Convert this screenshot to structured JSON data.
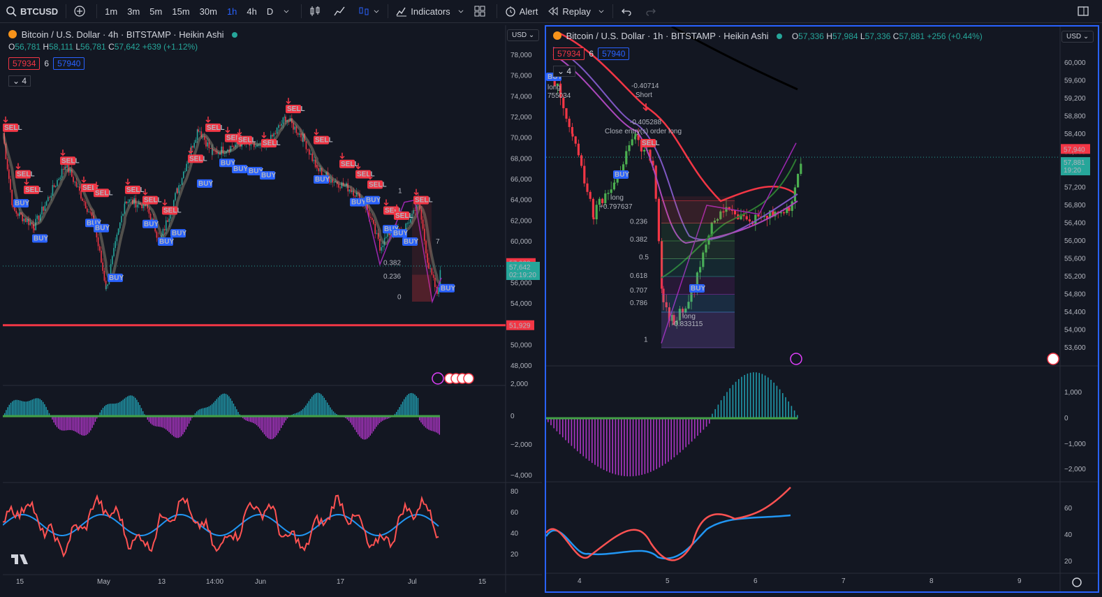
{
  "toolbar": {
    "symbol": "BTCUSD",
    "intervals": [
      "1m",
      "3m",
      "5m",
      "15m",
      "30m",
      "1h",
      "4h",
      "D"
    ],
    "active_interval": "1h",
    "indicators_label": "Indicators",
    "alert_label": "Alert",
    "replay_label": "Replay"
  },
  "left": {
    "title": "Bitcoin / U.S. Dollar · 4h · BITSTAMP · Heikin Ashi",
    "ohlc": {
      "o_label": "O",
      "o": "56,781",
      "h_label": "H",
      "h": "58,111",
      "l_label": "L",
      "l": "56,781",
      "c_label": "C",
      "c": "57,642",
      "chg": "+639 (+1.12%)"
    },
    "bid": "57934",
    "spread": "6",
    "ask": "57940",
    "collapse": "4",
    "currency": "USD",
    "y_ticks": [
      "78,000",
      "76,000",
      "74,000",
      "72,000",
      "70,000",
      "68,000",
      "66,000",
      "64,000",
      "62,000",
      "60,000",
      "58,000",
      "56,000",
      "54,000",
      "52,000",
      "50,000",
      "48,000"
    ],
    "price_tag": "57,928",
    "last_price": "57,642",
    "countdown": "02:19:20",
    "level_tag": "51,929",
    "fib_labels": [
      "1",
      "0.382",
      "0.236",
      "0",
      "7"
    ],
    "osc_ticks": [
      "2,000",
      "0",
      "−2,000",
      "−4,000"
    ],
    "rsi_ticks": [
      "80",
      "60",
      "40",
      "20"
    ],
    "x_ticks": [
      "15",
      "May",
      "13",
      "14:00",
      "Jun",
      "17",
      "Jul",
      "15"
    ],
    "signals": {
      "sell": "SELL",
      "buy": "BUY"
    }
  },
  "right": {
    "title": "Bitcoin / U.S. Dollar · 1h · BITSTAMP · Heikin Ashi",
    "ohlc": {
      "o_label": "O",
      "o": "57,336",
      "h_label": "H",
      "h": "57,984",
      "l_label": "L",
      "l": "57,336",
      "c_label": "C",
      "c": "57,881",
      "chg": "+256 (+0.44%)"
    },
    "bid": "57934",
    "spread": "6",
    "ask": "57940",
    "collapse": "4",
    "currency": "USD",
    "y_ticks": [
      "60,000",
      "59,600",
      "59,200",
      "58,800",
      "58,400",
      "58,000",
      "57,600",
      "57,200",
      "56,800",
      "56,400",
      "56,000",
      "55,600",
      "55,200",
      "54,800",
      "54,400",
      "54,000",
      "53,600"
    ],
    "price_tag": "57,940",
    "last_price": "57,881",
    "countdown": "19:20",
    "annotations": {
      "short_val": "-0.40714",
      "short": "Short",
      "close_val": "-0.405288",
      "close": "Close entry(s) order long",
      "long1": "long",
      "long1_val": "+0.797637",
      "long2": "long",
      "long2_val": "-0.833115",
      "long0": "long",
      "long0_val": "755034"
    },
    "fib_labels": [
      "0.236",
      "0.382",
      "0.5",
      "0.618",
      "0.707",
      "0.786",
      "1"
    ],
    "osc_ticks": [
      "1,000",
      "0",
      "−1,000",
      "−2,000"
    ],
    "rsi_ticks": [
      "60",
      "40",
      "20"
    ],
    "x_ticks": [
      "4",
      "5",
      "6",
      "7",
      "8",
      "9"
    ],
    "signals": {
      "sell": "SELL",
      "buy": "BUY"
    }
  },
  "colors": {
    "bg": "#131722",
    "up": "#26a69a",
    "down": "#f23645",
    "accent": "#2962ff",
    "grid": "#1e222d"
  }
}
